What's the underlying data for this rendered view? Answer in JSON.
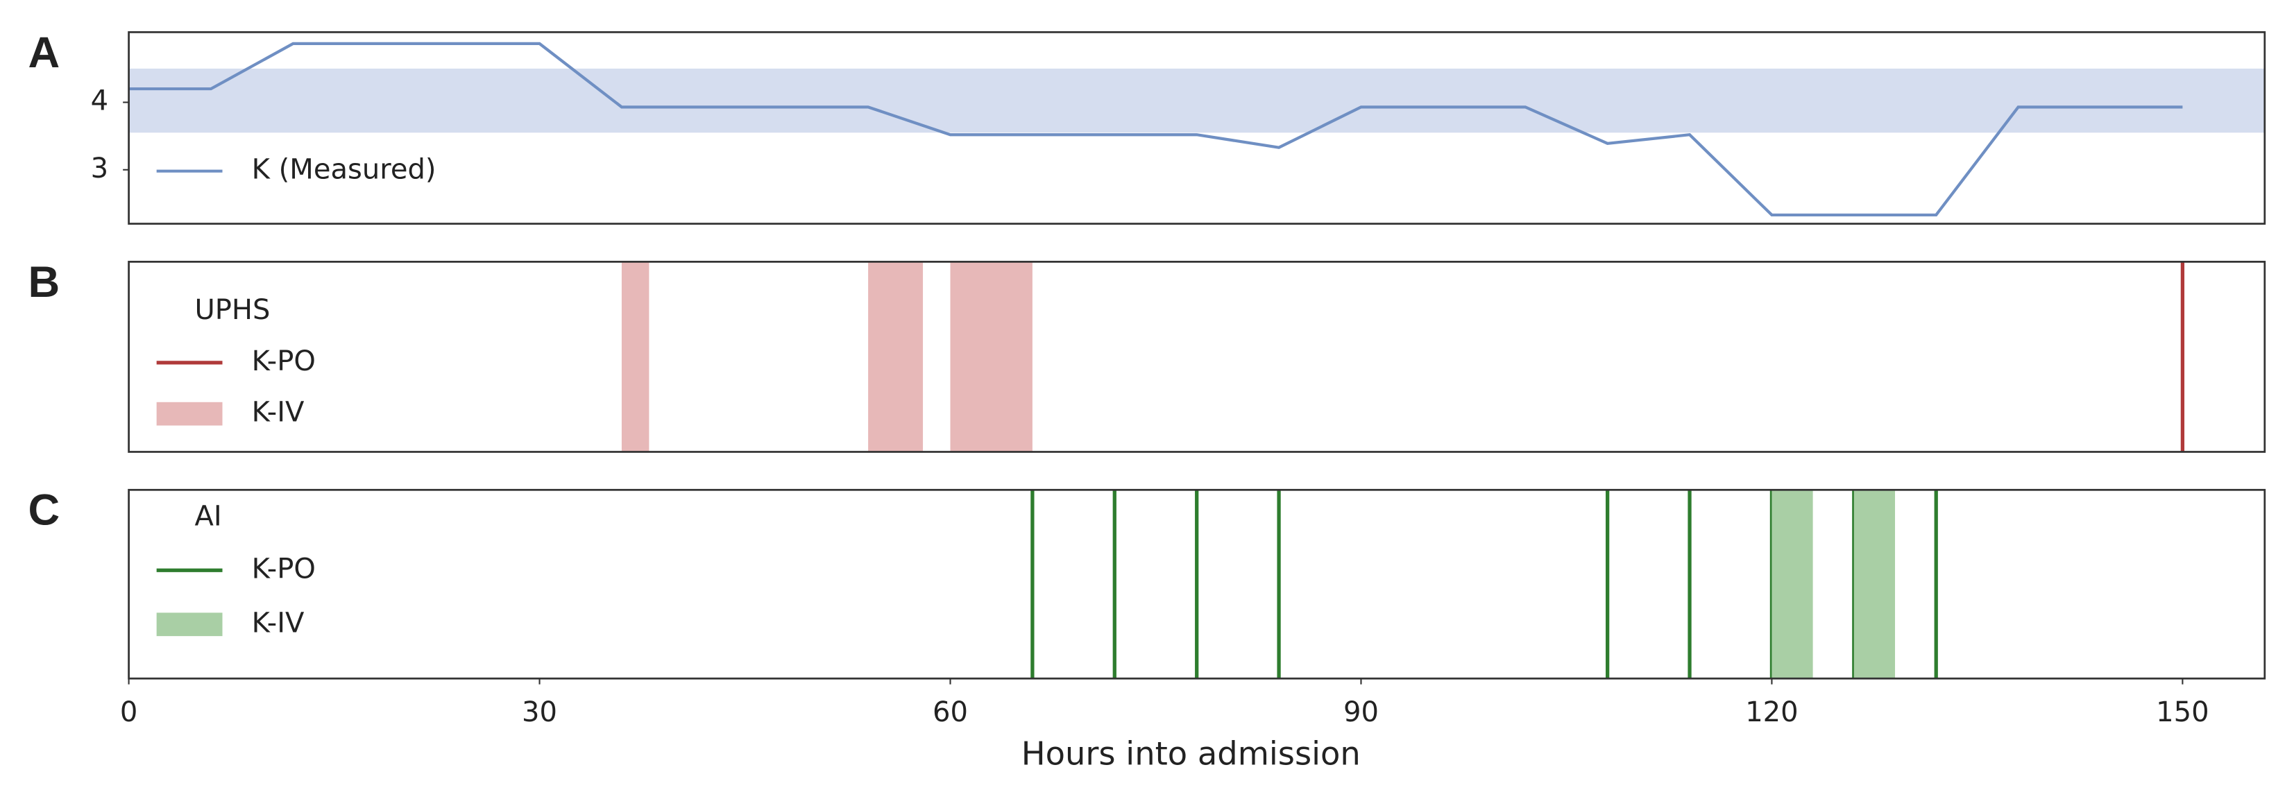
{
  "chart_data": [
    {
      "type": "line",
      "label": "A",
      "xlim": [
        0,
        156
      ],
      "ylim": [
        2.2,
        5.04
      ],
      "yticks": [
        3,
        4
      ],
      "band": [
        3.55,
        4.5
      ],
      "band_color": "#d5ddef",
      "series": [
        {
          "name": "K (Measured)",
          "color": "#6f8fc3",
          "x": [
            0,
            6,
            12,
            30,
            36,
            54,
            60,
            78,
            84,
            90,
            102,
            108,
            114,
            120,
            132,
            138,
            150
          ],
          "values": [
            4.2,
            4.2,
            4.87,
            4.87,
            3.93,
            3.93,
            3.52,
            3.52,
            3.33,
            3.93,
            3.93,
            3.39,
            3.52,
            2.33,
            2.33,
            3.93,
            3.93
          ]
        }
      ]
    },
    {
      "type": "event",
      "label": "B",
      "legend_title": "UPHS",
      "xlim": [
        0,
        156
      ],
      "series": [
        {
          "name": "K-PO",
          "color": "#b03a3a",
          "x": [
            150
          ]
        },
        {
          "name": "K-IV",
          "color": "#e7b8b8",
          "intervals": [
            [
              36,
              38
            ],
            [
              54,
              58
            ],
            [
              60,
              66
            ]
          ]
        }
      ]
    },
    {
      "type": "event",
      "label": "C",
      "legend_title": "AI",
      "xlim": [
        0,
        156
      ],
      "xticks": [
        0,
        30,
        60,
        90,
        120,
        150
      ],
      "xlabel": "Hours into admission",
      "series": [
        {
          "name": "K-PO",
          "color": "#2e7d2e",
          "x": [
            66,
            72,
            78,
            84,
            108,
            114,
            120,
            126,
            132
          ]
        },
        {
          "name": "K-IV",
          "color": "#a9cfa5",
          "intervals": [
            [
              120,
              123
            ],
            [
              126,
              129
            ]
          ]
        }
      ]
    }
  ]
}
